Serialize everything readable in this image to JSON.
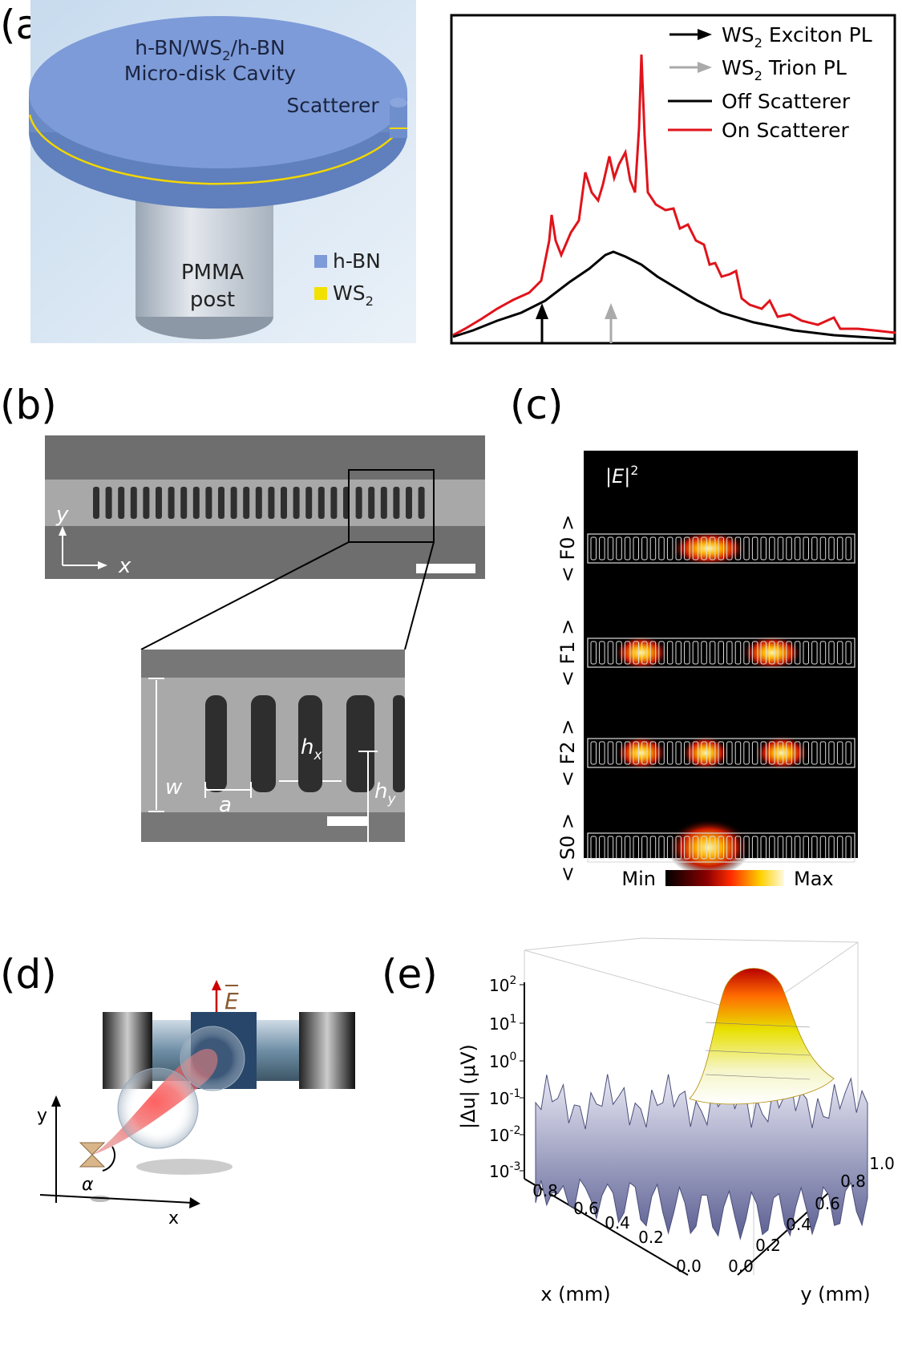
{
  "panel_a": {
    "label": "(a)",
    "diagram": {
      "cavity_line1": [
        "h-BN/WS",
        "2",
        "/h-BN"
      ],
      "cavity_line2": "Micro-disk Cavity",
      "scatterer": "Scatterer",
      "post_line1": "PMMA",
      "post_line2": "post",
      "legend": [
        [
          "h-BN"
        ],
        [
          "WS",
          "2"
        ]
      ]
    },
    "spectrum": {
      "legend": [
        [
          "WS",
          "2",
          " Exciton PL"
        ],
        [
          "WS",
          "2",
          " Trion PL"
        ],
        [
          "Off Scatterer"
        ],
        [
          "On Scatterer"
        ]
      ]
    }
  },
  "panel_b": {
    "label": "(b)",
    "axes": [
      "y",
      "x"
    ],
    "inset": {
      "w": "w",
      "a": "a",
      "hx": [
        "h",
        "x"
      ],
      "hy": [
        "h",
        "y"
      ]
    }
  },
  "panel_c": {
    "label": "(c)",
    "field_label": [
      "|",
      "E",
      "|",
      "2"
    ],
    "modes": [
      "< F0 >",
      "< F1 >",
      "< F2 >",
      "< S0 >"
    ],
    "colorbar": [
      "Min",
      "Max"
    ]
  },
  "panel_d": {
    "label": "(d)",
    "field": "E",
    "axes": [
      "y",
      "x"
    ],
    "angle": "α"
  },
  "panel_e": {
    "label": "(e)",
    "z_title": "|Δu| (μV)",
    "z_ticks": [
      {
        "base": "10",
        "exp": "2"
      },
      {
        "base": "10",
        "exp": "1"
      },
      {
        "base": "10",
        "exp": "0"
      },
      {
        "base": "10",
        "exp": "-1"
      },
      {
        "base": "10",
        "exp": "-2"
      },
      {
        "base": "10",
        "exp": "-3"
      }
    ],
    "x_title": "x (mm)",
    "x_ticks": [
      "0.8",
      "0.6",
      "0.4",
      "0.2",
      "0.0"
    ],
    "y_title": "y (mm)",
    "y_ticks": [
      "0.0",
      "0.2",
      "0.4",
      "0.6",
      "0.8",
      "1.0"
    ]
  }
}
